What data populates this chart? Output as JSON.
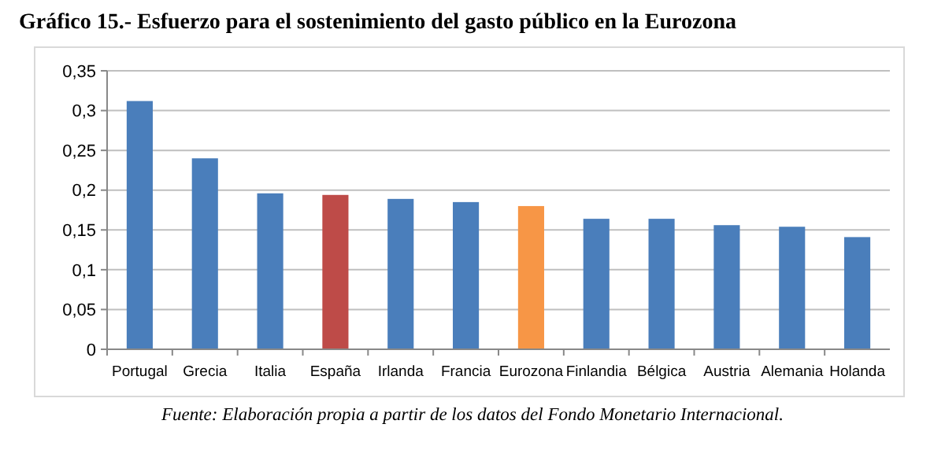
{
  "chart_data": {
    "type": "bar",
    "title": "Gráfico 15.- Esfuerzo para el sostenimiento del gasto público en la Eurozona",
    "categories": [
      "Portugal",
      "Grecia",
      "Italia",
      "España",
      "Irlanda",
      "Francia",
      "Eurozona",
      "Finlandia",
      "Bélgica",
      "Austria",
      "Alemania",
      "Holanda"
    ],
    "values": [
      0.312,
      0.24,
      0.196,
      0.194,
      0.189,
      0.185,
      0.18,
      0.164,
      0.164,
      0.156,
      0.154,
      0.141
    ],
    "colors": [
      "#4a7ebb",
      "#4a7ebb",
      "#4a7ebb",
      "#be4b48",
      "#4a7ebb",
      "#4a7ebb",
      "#f79646",
      "#4a7ebb",
      "#4a7ebb",
      "#4a7ebb",
      "#4a7ebb",
      "#4a7ebb"
    ],
    "ylim": [
      0,
      0.35
    ],
    "yticks": [
      {
        "value": 0,
        "label": "0"
      },
      {
        "value": 0.05,
        "label": "0,05"
      },
      {
        "value": 0.1,
        "label": "0,1"
      },
      {
        "value": 0.15,
        "label": "0,15"
      },
      {
        "value": 0.2,
        "label": "0,2"
      },
      {
        "value": 0.25,
        "label": "0,25"
      },
      {
        "value": 0.3,
        "label": "0,3"
      },
      {
        "value": 0.35,
        "label": "0,35"
      }
    ],
    "grid": "y",
    "annotations": [
      "Fuente: Elaboración propia a partir de los datos del Fondo Monetario Internacional."
    ]
  }
}
